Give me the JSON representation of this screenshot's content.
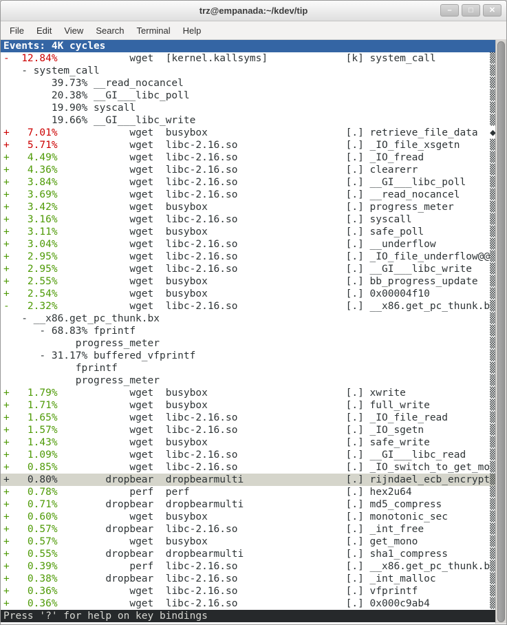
{
  "window": {
    "title": "trz@empanada:~/kdev/tip",
    "controls": {
      "minimize": "–",
      "maximize": "□",
      "close": "✕"
    }
  },
  "menu": {
    "items": [
      "File",
      "Edit",
      "View",
      "Search",
      "Terminal",
      "Help"
    ]
  },
  "terminal": {
    "header": "Events: 4K cycles",
    "status": "Press '?' for help on key bindings",
    "scroll_glyphs": {
      "shade": "▒",
      "diamond": "◆"
    },
    "colors": {
      "header_bg": "#3465a4",
      "red": "#cc0000",
      "green": "#4e9a06",
      "selected_bg": "#d5d5cb",
      "status_bg": "#26292b",
      "status_fg": "#d8d8d3"
    },
    "rows": [
      {
        "p": "-  12.84%",
        "c": "r",
        "t": "            wget  [kernel.kallsyms]             [k] system_call",
        "m": "s"
      },
      {
        "p": "",
        "c": "",
        "t": "   - system_call",
        "m": "s"
      },
      {
        "p": "",
        "c": "",
        "t": "        39.73% __read_nocancel",
        "m": "s"
      },
      {
        "p": "",
        "c": "",
        "t": "        20.38% __GI___libc_poll",
        "m": "s"
      },
      {
        "p": "",
        "c": "",
        "t": "        19.90% syscall",
        "m": "s"
      },
      {
        "p": "",
        "c": "",
        "t": "        19.66% __GI___libc_write",
        "m": "s"
      },
      {
        "p": "+   7.01%",
        "c": "r",
        "t": "            wget  busybox                       [.] retrieve_file_data",
        "m": "d"
      },
      {
        "p": "+   5.71%",
        "c": "r",
        "t": "            wget  libc-2.16.so                  [.] _IO_file_xsgetn",
        "m": "s"
      },
      {
        "p": "+   4.49%",
        "c": "g",
        "t": "            wget  libc-2.16.so                  [.] _IO_fread",
        "m": "s"
      },
      {
        "p": "+   4.36%",
        "c": "g",
        "t": "            wget  libc-2.16.so                  [.] clearerr",
        "m": "s"
      },
      {
        "p": "+   3.84%",
        "c": "g",
        "t": "            wget  libc-2.16.so                  [.] __GI___libc_poll",
        "m": "s"
      },
      {
        "p": "+   3.69%",
        "c": "g",
        "t": "            wget  libc-2.16.so                  [.] __read_nocancel",
        "m": "s"
      },
      {
        "p": "+   3.42%",
        "c": "g",
        "t": "            wget  busybox                       [.] progress_meter",
        "m": "s"
      },
      {
        "p": "+   3.16%",
        "c": "g",
        "t": "            wget  libc-2.16.so                  [.] syscall",
        "m": "s"
      },
      {
        "p": "+   3.11%",
        "c": "g",
        "t": "            wget  busybox                       [.] safe_poll",
        "m": "s"
      },
      {
        "p": "+   3.04%",
        "c": "g",
        "t": "            wget  libc-2.16.so                  [.] __underflow",
        "m": "s"
      },
      {
        "p": "+   2.95%",
        "c": "g",
        "t": "            wget  libc-2.16.so                  [.] _IO_file_underflow@@",
        "m": "s"
      },
      {
        "p": "+   2.95%",
        "c": "g",
        "t": "            wget  libc-2.16.so                  [.] __GI___libc_write",
        "m": "s"
      },
      {
        "p": "+   2.55%",
        "c": "g",
        "t": "            wget  busybox                       [.] bb_progress_update",
        "m": "s"
      },
      {
        "p": "+   2.54%",
        "c": "g",
        "t": "            wget  busybox                       [.] 0x00004f10",
        "m": "s"
      },
      {
        "p": "-   2.32%",
        "c": "g",
        "t": "            wget  libc-2.16.so                  [.] __x86.get_pc_thunk.b",
        "m": "s"
      },
      {
        "p": "",
        "c": "",
        "t": "   - __x86.get_pc_thunk.bx",
        "m": "s"
      },
      {
        "p": "",
        "c": "",
        "t": "      - 68.83% fprintf",
        "m": "s"
      },
      {
        "p": "",
        "c": "",
        "t": "            progress_meter",
        "m": "s"
      },
      {
        "p": "",
        "c": "",
        "t": "      - 31.17% buffered_vfprintf",
        "m": "s"
      },
      {
        "p": "",
        "c": "",
        "t": "            fprintf",
        "m": "s"
      },
      {
        "p": "",
        "c": "",
        "t": "            progress_meter",
        "m": "s"
      },
      {
        "p": "+   1.79%",
        "c": "g",
        "t": "            wget  busybox                       [.] xwrite",
        "m": "s"
      },
      {
        "p": "+   1.71%",
        "c": "g",
        "t": "            wget  busybox                       [.] full_write",
        "m": "s"
      },
      {
        "p": "+   1.65%",
        "c": "g",
        "t": "            wget  libc-2.16.so                  [.] _IO_file_read",
        "m": "s"
      },
      {
        "p": "+   1.57%",
        "c": "g",
        "t": "            wget  libc-2.16.so                  [.] _IO_sgetn",
        "m": "s"
      },
      {
        "p": "+   1.43%",
        "c": "g",
        "t": "            wget  busybox                       [.] safe_write",
        "m": "s"
      },
      {
        "p": "+   1.09%",
        "c": "g",
        "t": "            wget  libc-2.16.so                  [.] __GI___libc_read",
        "m": "s"
      },
      {
        "p": "+   0.85%",
        "c": "g",
        "t": "            wget  libc-2.16.so                  [.] _IO_switch_to_get_mo",
        "m": "s"
      },
      {
        "p": "+   0.80%",
        "c": "",
        "t": "        dropbear  dropbearmulti                 [.] rijndael_ecb_encrypt",
        "m": "s",
        "sel": true
      },
      {
        "p": "+   0.78%",
        "c": "g",
        "t": "            perf  perf                          [.] hex2u64",
        "m": "s"
      },
      {
        "p": "+   0.71%",
        "c": "g",
        "t": "        dropbear  dropbearmulti                 [.] md5_compress",
        "m": "s"
      },
      {
        "p": "+   0.60%",
        "c": "g",
        "t": "            wget  busybox                       [.] monotonic_sec",
        "m": "s"
      },
      {
        "p": "+   0.57%",
        "c": "g",
        "t": "        dropbear  libc-2.16.so                  [.] _int_free",
        "m": "s"
      },
      {
        "p": "+   0.57%",
        "c": "g",
        "t": "            wget  busybox                       [.] get_mono",
        "m": "s"
      },
      {
        "p": "+   0.55%",
        "c": "g",
        "t": "        dropbear  dropbearmulti                 [.] sha1_compress",
        "m": "s"
      },
      {
        "p": "+   0.39%",
        "c": "g",
        "t": "            perf  libc-2.16.so                  [.] __x86.get_pc_thunk.b",
        "m": "s"
      },
      {
        "p": "+   0.38%",
        "c": "g",
        "t": "        dropbear  libc-2.16.so                  [.] _int_malloc",
        "m": "s"
      },
      {
        "p": "+   0.36%",
        "c": "g",
        "t": "            wget  libc-2.16.so                  [.] vfprintf",
        "m": "s"
      },
      {
        "p": "+   0.36%",
        "c": "g",
        "t": "            wget  libc-2.16.so                  [.] 0x000c9ab4",
        "m": "s"
      }
    ]
  }
}
